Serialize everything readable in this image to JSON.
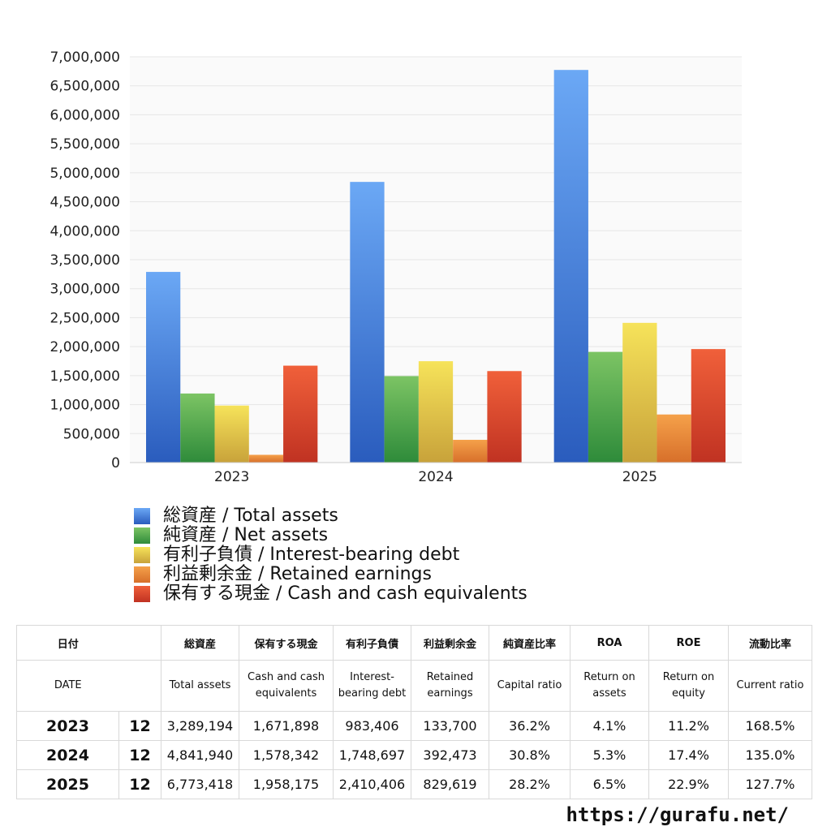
{
  "chart_data": {
    "type": "bar",
    "categories": [
      "2023",
      "2024",
      "2025"
    ],
    "series": [
      {
        "name": "総資産 / Total assets",
        "values": [
          3289194,
          4841940,
          6773418
        ],
        "color_top": "#6ba8f5",
        "color_bottom": "#2a5cbd"
      },
      {
        "name": "純資産 / Net assets",
        "values": [
          1191494,
          1491808,
          1909600
        ],
        "color_top": "#7cc464",
        "color_bottom": "#2e8b3a"
      },
      {
        "name": "有利子負債 / Interest-bearing debt",
        "values": [
          983406,
          1748697,
          2410406
        ],
        "color_top": "#f6e35a",
        "color_bottom": "#c8a23a"
      },
      {
        "name": "利益剰余金 / Retained earnings",
        "values": [
          133700,
          392473,
          829619
        ],
        "color_top": "#f5a14a",
        "color_bottom": "#d76f2a"
      },
      {
        "name": "保有する現金 /  Cash and cash equivalents",
        "values": [
          1671898,
          1578342,
          1958175
        ],
        "color_top": "#f0603a",
        "color_bottom": "#c03222"
      }
    ],
    "ylim": [
      0,
      7000000
    ],
    "yticks": [
      "0",
      "500,000",
      "1,000,000",
      "1,500,000",
      "2,000,000",
      "2,500,000",
      "3,000,000",
      "3,500,000",
      "4,000,000",
      "4,500,000",
      "5,000,000",
      "5,500,000",
      "6,000,000",
      "6,500,000",
      "7,000,000"
    ],
    "grid": true,
    "legend_position": "bottom"
  },
  "table": {
    "header_jp": [
      "日付",
      "",
      "総資産",
      "保有する現金",
      "有利子負債",
      "利益剰余金",
      "純資産比率",
      "ROA",
      "ROE",
      "流動比率"
    ],
    "header_en": [
      "DATE",
      "",
      "Total assets",
      "Cash and cash equivalents",
      "Interest-bearing debt",
      "Retained earnings",
      "Capital ratio",
      "Return on assets",
      "Return on equity",
      "Current ratio"
    ],
    "rows": [
      [
        "2023",
        "12",
        "3,289,194",
        "1,671,898",
        "983,406",
        "133,700",
        "36.2%",
        "4.1%",
        "11.2%",
        "168.5%"
      ],
      [
        "2024",
        "12",
        "4,841,940",
        "1,578,342",
        "1,748,697",
        "392,473",
        "30.8%",
        "5.3%",
        "17.4%",
        "135.0%"
      ],
      [
        "2025",
        "12",
        "6,773,418",
        "1,958,175",
        "2,410,406",
        "829,619",
        "28.2%",
        "6.5%",
        "22.9%",
        "127.7%"
      ]
    ]
  },
  "footer": {
    "url": "https://gurafu.net/"
  }
}
